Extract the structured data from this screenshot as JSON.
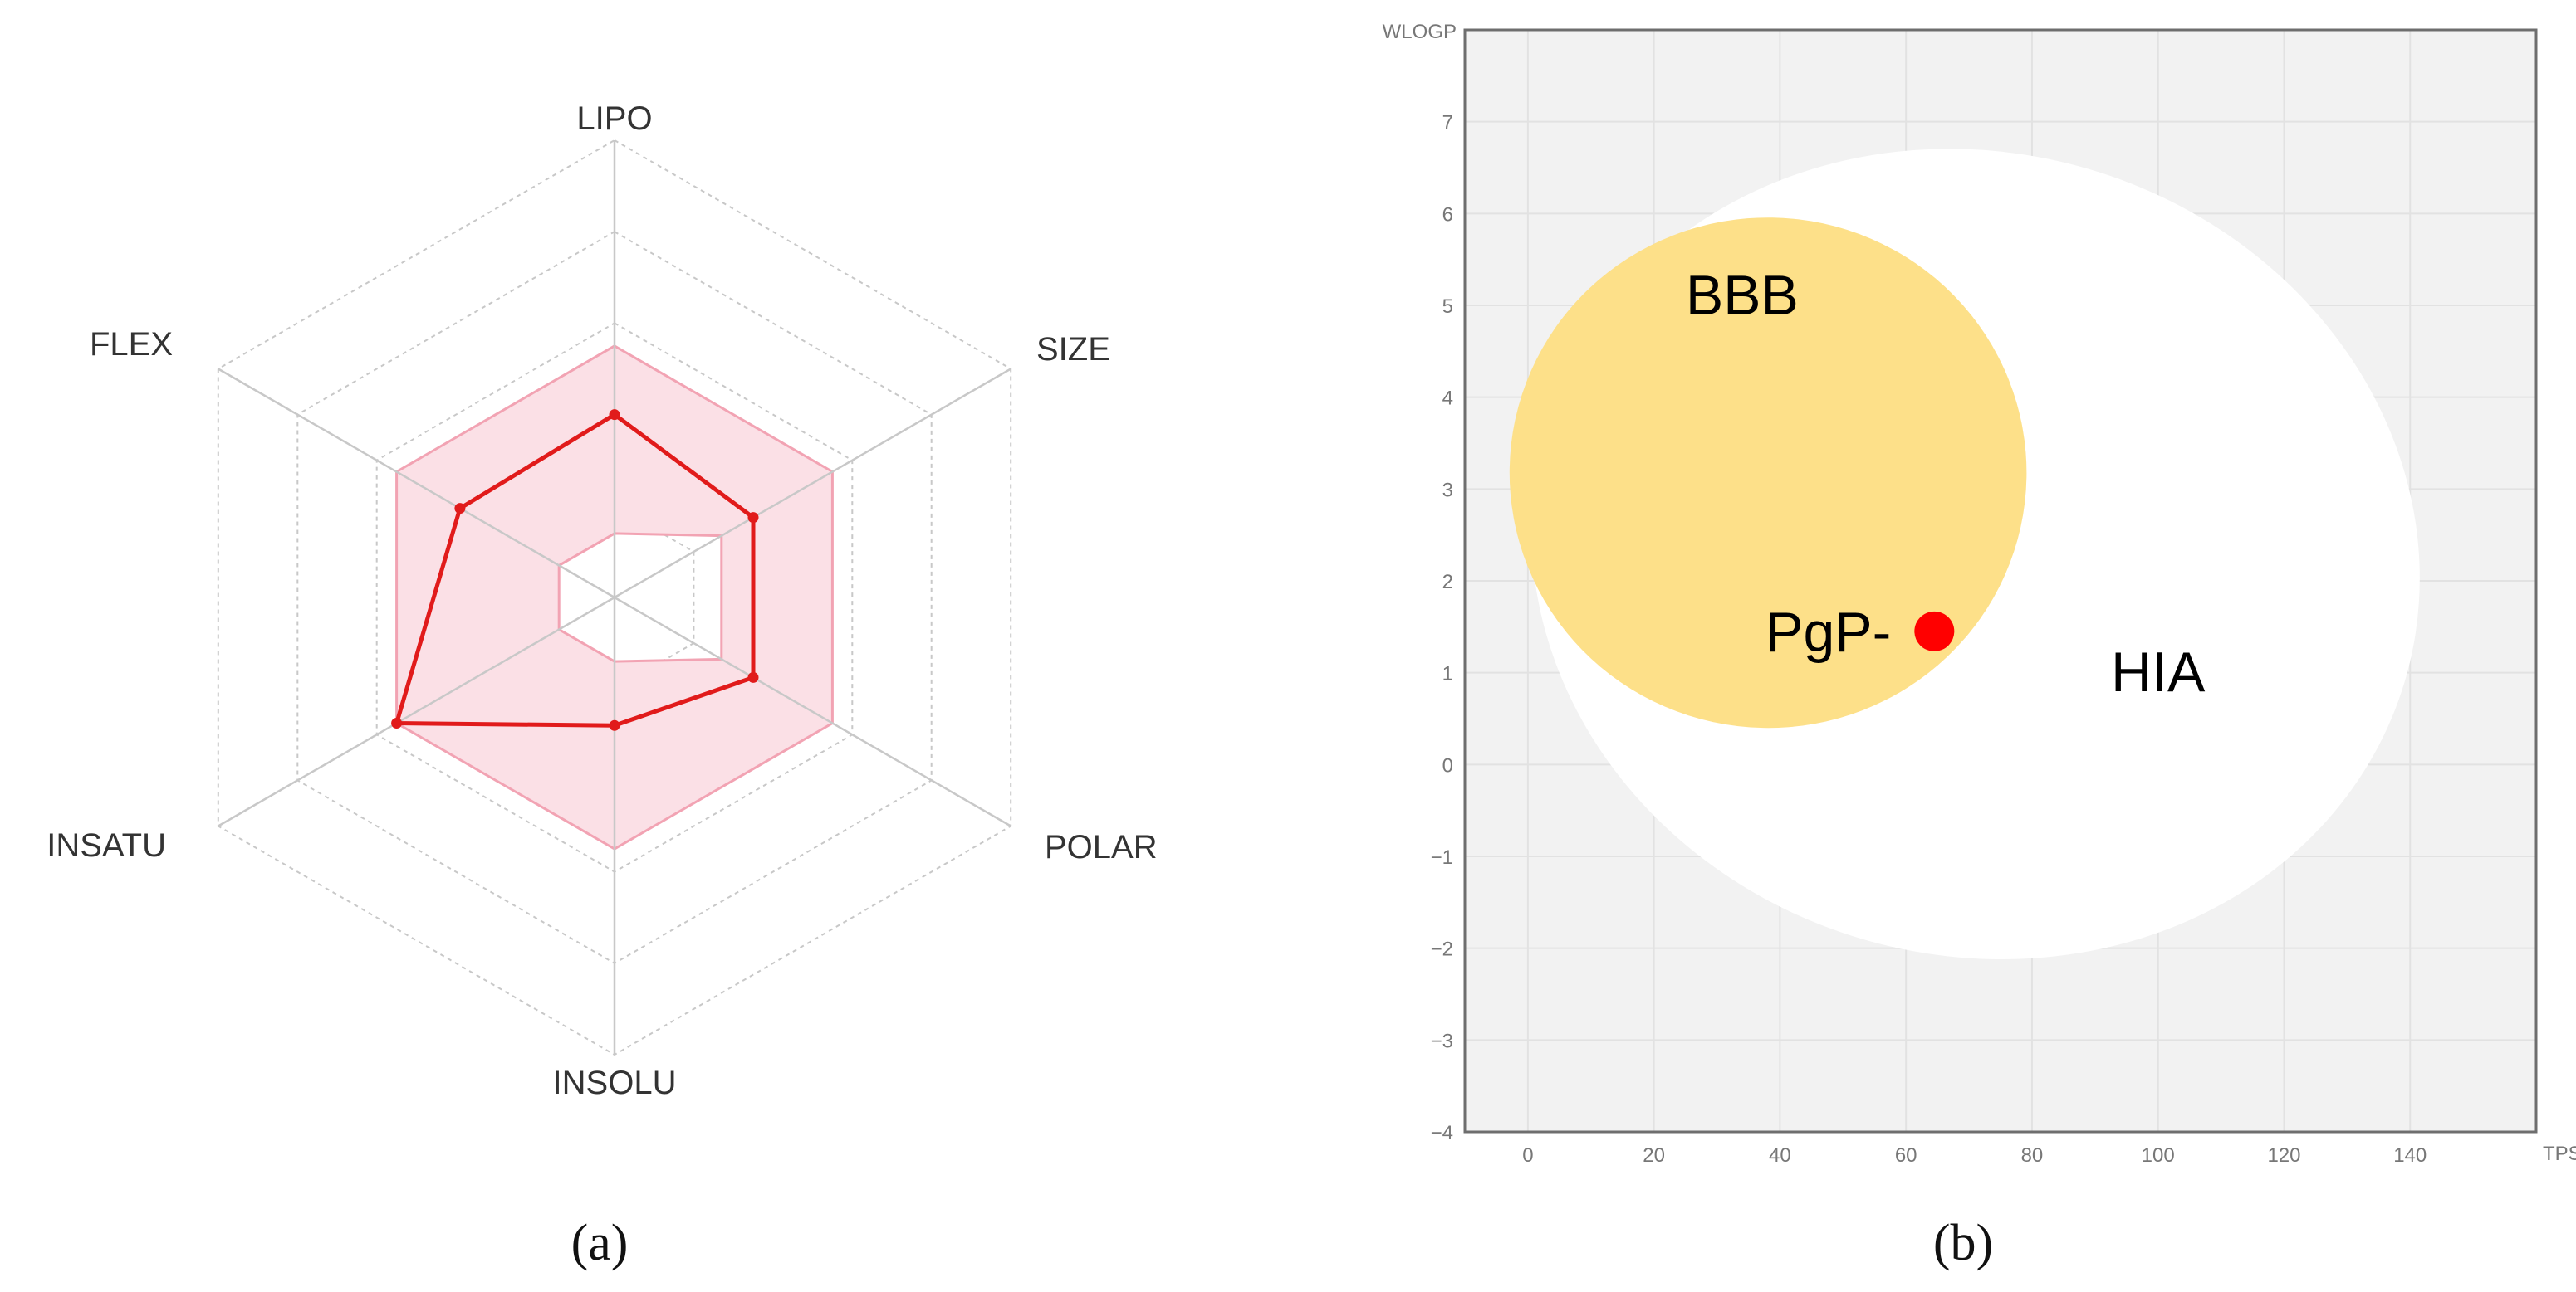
{
  "chart_data": [
    {
      "type": "radar",
      "panel_label": "(a)",
      "axes": [
        "LIPO",
        "SIZE",
        "POLAR",
        "INSOLU",
        "INSATU",
        "FLEX"
      ],
      "scale": [
        0,
        1
      ],
      "optimal_range": {
        "lower": [
          0.14,
          0.27,
          0.27,
          0.14,
          0.14,
          0.14
        ],
        "upper": [
          0.55,
          0.55,
          0.55,
          0.55,
          0.55,
          0.55
        ]
      },
      "series": [
        {
          "name": "compound",
          "values": [
            0.4,
            0.35,
            0.35,
            0.28,
            0.55,
            0.39
          ]
        }
      ],
      "colors": {
        "molecule": "#e11b1b",
        "optimal_fill": "#fbe0e6",
        "optimal_edge": "#f2a3b3",
        "grid": "#c8c8c8"
      }
    },
    {
      "type": "scatter",
      "panel_label": "(b)",
      "xlabel": "TPSA",
      "ylabel": "WLOGP",
      "xlim": [
        -10,
        160
      ],
      "ylim": [
        -4,
        8
      ],
      "xticks": [
        0,
        20,
        40,
        60,
        80,
        100,
        120,
        140
      ],
      "yticks": [
        -4,
        -3,
        -2,
        -1,
        0,
        1,
        2,
        3,
        4,
        5,
        6,
        7
      ],
      "regions": [
        {
          "label": "HIA",
          "type": "ellipse",
          "center": [
            71.05,
            2.292
          ],
          "radii": [
            142.081,
            8.74
          ],
          "rotation_deg": -1.031,
          "color": "#ffffff",
          "label_at": [
            100,
            0.8
          ]
        },
        {
          "label": "BBB",
          "type": "ellipse",
          "center": [
            38.117,
            3.177
          ],
          "radii": [
            82.061,
            5.557
          ],
          "rotation_deg": -0.066,
          "color": "#fde089",
          "label_at": [
            34,
            4.9
          ]
        }
      ],
      "points": [
        {
          "label": "PgP-",
          "x": 64.5,
          "y": 1.45,
          "color": "#ff0000"
        }
      ],
      "colors": {
        "background": "#f2f2f2",
        "grid": "#e2e2e2",
        "frame": "#6e6e6e"
      }
    }
  ]
}
